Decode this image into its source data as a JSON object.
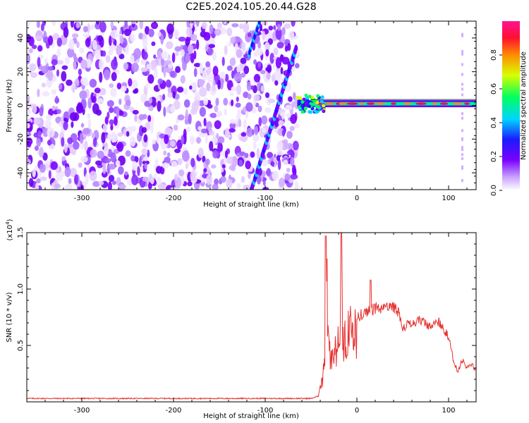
{
  "title": "C2E5.2024.105.20.44.G28",
  "chart_data": [
    {
      "type": "heatmap",
      "xlabel": "Height of straight line (km)",
      "ylabel": "Frequency (Hz)",
      "xlim": [
        -360,
        130
      ],
      "ylim": [
        -50,
        50
      ],
      "xticks": [
        -300,
        -200,
        -100,
        0,
        100
      ],
      "yticks": [
        -40,
        -20,
        0,
        20,
        40
      ],
      "colorbar": {
        "label": "Normalized spectral amplitude",
        "range": [
          0.0,
          1.0
        ],
        "ticks": [
          "0.0",
          "0.2",
          "0.4",
          "0.6",
          "0.8"
        ],
        "tick_values": [
          0.0,
          0.2,
          0.4,
          0.6,
          0.8
        ],
        "colormap": [
          "#ffffff",
          "#8a00ff",
          "#2a2aff",
          "#00e5ff",
          "#00ff40",
          "#e8ff00",
          "#ff8c00",
          "#ff0040",
          "#ff1493"
        ]
      },
      "features": {
        "noise_region_x": [
          -360,
          -65
        ],
        "signal_start_x": -65,
        "signal_line_y": [
          0,
          2
        ],
        "signal_end_x": 130,
        "diagonal_streak": {
          "x": [
            -115,
            -60
          ],
          "y": [
            -50,
            45
          ]
        }
      }
    },
    {
      "type": "line",
      "xlabel": "Height of straight line (km)",
      "ylabel": "SNR (10 * v/v)",
      "scale_label": "(x10",
      "scale_exponent": "4",
      "scale_suffix": ")",
      "xlim": [
        -360,
        130
      ],
      "ylim": [
        0,
        1.5
      ],
      "xticks": [
        -300,
        -200,
        -100,
        0,
        100
      ],
      "yticks": [
        "0.5",
        "1.0",
        "1.5"
      ],
      "ytick_values": [
        0.5,
        1.0,
        1.5
      ],
      "color": "#e83030",
      "x": [
        -360,
        -300,
        -200,
        -100,
        -50,
        -42,
        -38,
        -35,
        -33,
        -30,
        -25,
        -20,
        -17,
        -15,
        -10,
        -5,
        0,
        10,
        20,
        30,
        40,
        45,
        50,
        60,
        70,
        75,
        80,
        90,
        100,
        105,
        110,
        115,
        120,
        125,
        130
      ],
      "values": [
        0.03,
        0.03,
        0.03,
        0.03,
        0.03,
        0.05,
        0.25,
        0.45,
        1.47,
        0.55,
        0.6,
        0.7,
        1.5,
        0.75,
        0.85,
        0.95,
        0.8,
        0.85,
        0.88,
        0.88,
        0.9,
        0.85,
        0.7,
        0.75,
        0.77,
        0.75,
        0.7,
        0.75,
        0.62,
        0.4,
        0.28,
        0.4,
        0.32,
        0.35,
        0.3
      ],
      "peaks": [
        {
          "x": -34,
          "y": 1.47
        },
        {
          "x": -17,
          "y": 1.5
        },
        {
          "x": 15,
          "y": 1.08
        }
      ]
    }
  ]
}
